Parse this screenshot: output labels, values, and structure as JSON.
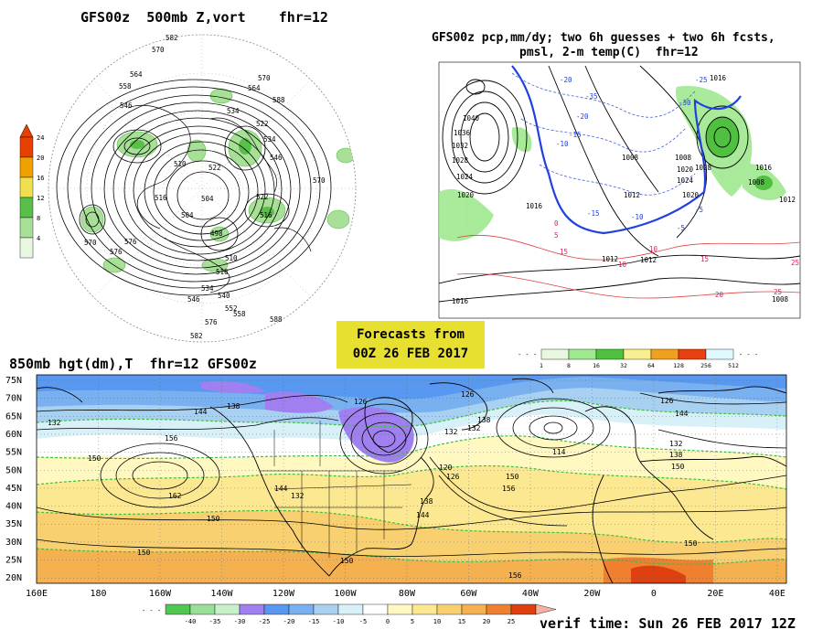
{
  "titles": {
    "panel1": "GFS00z  500mb Z,vort    fhr=12",
    "panel2_line1": "GFS00z pcp,mm/dy; two 6h guesses + two 6h fcsts,",
    "panel2_line2": "pmsl, 2-m temp(C)  fhr=12",
    "panel3": "850mb hgt(dm),T  fhr=12 GFS00z"
  },
  "badge": {
    "line1": "Forecasts from",
    "line2": "00Z 26 FEB 2017"
  },
  "verif": "verif time: Sun 26 FEB 2017 12Z",
  "colors": {
    "vort": [
      "#e8f8e0",
      "#a8e098",
      "#58c048",
      "#f0e050",
      "#f0a000",
      "#e84000"
    ],
    "pcp": [
      "#e8f8e0",
      "#a0e890",
      "#50c040",
      "#f8f090",
      "#f0a020",
      "#e84010",
      "#e0f8ff"
    ],
    "temp": [
      "#50c850",
      "#98e098",
      "#c8f0c8",
      "#a080f0",
      "#5898f0",
      "#78b0f0",
      "#a8d0f0",
      "#d8f0f8",
      "#ffffff",
      "#fff8c0",
      "#fbe890",
      "#f8d070",
      "#f5b050",
      "#f08030",
      "#e04010"
    ]
  },
  "chart_data": [
    {
      "type": "heatmap",
      "title": "GFS00z  500mb Z,vort    fhr=12",
      "colorbar": {
        "ticks": [
          "4",
          "8",
          "12",
          "16",
          "20",
          "24"
        ]
      },
      "contour_labels": [
        "582",
        "570",
        "570",
        "564",
        "558",
        "546",
        "534",
        "522",
        "534",
        "546",
        "510",
        "522",
        "516",
        "504",
        "504",
        "522",
        "516",
        "498",
        "510",
        "516",
        "570",
        "576",
        "576",
        "534",
        "540",
        "546",
        "552",
        "558",
        "576",
        "582",
        "588",
        "588",
        "564",
        "570"
      ]
    },
    {
      "type": "heatmap",
      "title": "GFS00z pcp,mm/dy; two 6h guesses + two 6h fcsts, pmsl, 2-m temp(C)  fhr=12",
      "colorbar": {
        "ticks": [
          "1",
          "8",
          "16",
          "32",
          "64",
          "128",
          "256",
          "512"
        ]
      },
      "pressure_labels": [
        "1040",
        "1036",
        "1032",
        "1028",
        "1024",
        "1020",
        "1016",
        "1012",
        "1012",
        "1012",
        "1008",
        "1008",
        "1008",
        "1016",
        "1020",
        "1024",
        "1028",
        "1020",
        "1012",
        "1016",
        "1016",
        "1008"
      ],
      "temperature_labels": [
        "-20",
        "-15",
        "-10",
        "-5",
        "0",
        "5",
        "10",
        "15",
        "20",
        "25",
        "-35",
        "-25",
        "-30",
        "-20",
        "-15",
        "-10",
        "-5",
        "10",
        "15",
        "25"
      ]
    },
    {
      "type": "heatmap",
      "title": "850mb hgt(dm),T  fhr=12 GFS00z",
      "x_tick_labels": [
        "160E",
        "180",
        "160W",
        "140W",
        "120W",
        "100W",
        "80W",
        "60W",
        "40W",
        "20W",
        "0",
        "20E",
        "40E"
      ],
      "y_tick_labels": [
        "75N",
        "70N",
        "65N",
        "60N",
        "55N",
        "50N",
        "45N",
        "40N",
        "35N",
        "30N",
        "25N",
        "20N"
      ],
      "colorbar": {
        "ticks": [
          "-40",
          "-35",
          "-30",
          "-25",
          "-20",
          "-15",
          "-10",
          "-5",
          "0",
          "5",
          "10",
          "15",
          "20",
          "25"
        ]
      },
      "height_labels": [
        "132",
        "138",
        "144",
        "150",
        "156",
        "162",
        "150",
        "150",
        "126",
        "138",
        "132",
        "132",
        "126",
        "126",
        "120",
        "114",
        "126",
        "150",
        "156",
        "138",
        "144",
        "132",
        "144",
        "150",
        "150",
        "156",
        "150",
        "132",
        "138",
        "144"
      ]
    }
  ]
}
